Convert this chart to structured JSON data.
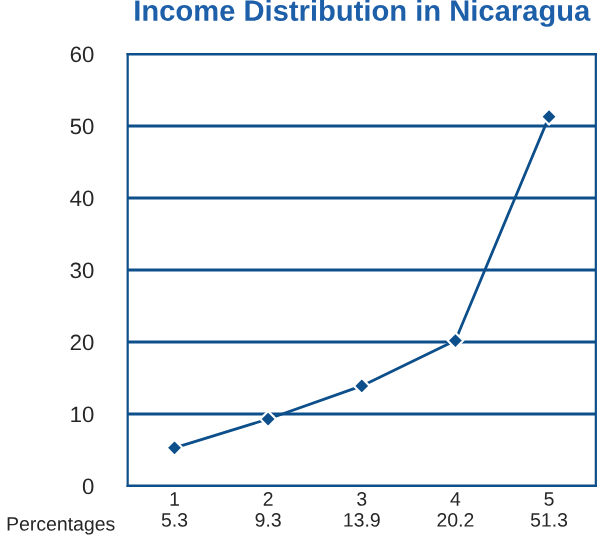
{
  "chart_data": {
    "type": "line",
    "title": "Income Distribution in Nicaragua",
    "categories": [
      "1\n5.3",
      "2\n9.3",
      "3\n13.9",
      "4\n20.2",
      "5\n51.3"
    ],
    "series": [
      {
        "color": "#0d4f8b",
        "values": [
          5.3,
          9.3,
          13.9,
          20.2,
          51.3
        ]
      }
    ],
    "ylim": [
      0,
      60
    ],
    "yticks": [
      0,
      10,
      20,
      30,
      40,
      50,
      60
    ],
    "grid": "y",
    "marker": "diamond",
    "line_style": "solid",
    "legend": false,
    "annotations": [
      "Percentages"
    ]
  }
}
